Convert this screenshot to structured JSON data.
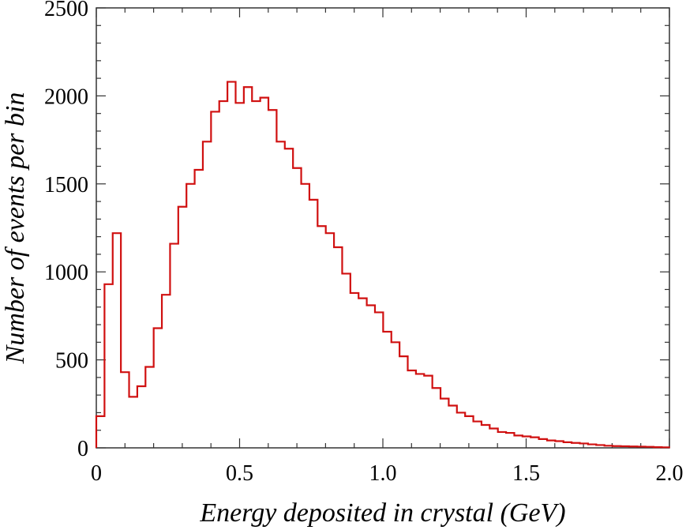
{
  "chart_data": {
    "type": "step",
    "title": "",
    "xlabel": "Energy deposited in crystal (GeV)",
    "ylabel": "Number of events per bin",
    "xlim": [
      0,
      2.0
    ],
    "ylim": [
      0,
      2500
    ],
    "x_ticks": [
      "0",
      "0.5",
      "1.0",
      "1.5",
      "2.0"
    ],
    "y_ticks": [
      "0",
      "500",
      "1000",
      "1500",
      "2000",
      "2500"
    ],
    "grid": false,
    "bin_width": 0.0286,
    "series": [
      {
        "color": "#d01010",
        "values": [
          180,
          930,
          1220,
          430,
          290,
          350,
          460,
          680,
          870,
          1160,
          1370,
          1500,
          1580,
          1740,
          1910,
          1970,
          2080,
          1960,
          2050,
          1970,
          1990,
          1920,
          1740,
          1700,
          1590,
          1500,
          1410,
          1260,
          1220,
          1140,
          990,
          880,
          850,
          810,
          770,
          660,
          600,
          520,
          440,
          420,
          410,
          340,
          280,
          240,
          200,
          180,
          150,
          130,
          110,
          90,
          85,
          70,
          65,
          60,
          50,
          42,
          38,
          32,
          28,
          25,
          20,
          16,
          12,
          10,
          9,
          8,
          7,
          6,
          4,
          3
        ]
      }
    ]
  }
}
